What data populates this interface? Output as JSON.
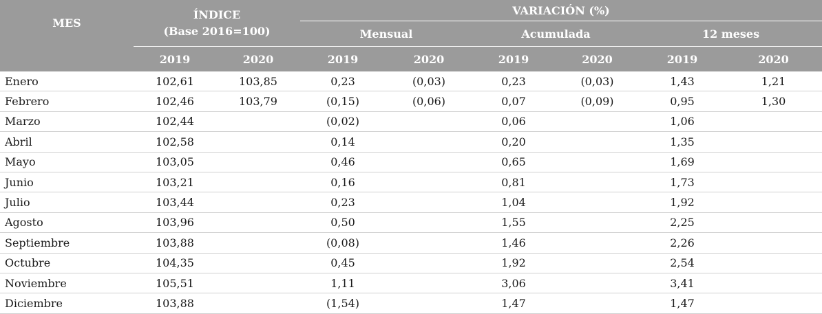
{
  "header": {
    "mes": "MES",
    "indice_line1": "ÍNDICE",
    "indice_line2": "(Base 2016=100)",
    "variacion": "VARIACIÓN (%)",
    "mensual": "Mensual",
    "acumulada": "Acumulada",
    "doce_meses": "12 meses",
    "years": [
      "2019",
      "2020",
      "2019",
      "2020",
      "2019",
      "2020",
      "2019",
      "2020"
    ]
  },
  "rows": [
    {
      "mes": "Enero",
      "v": [
        "102,61",
        "103,85",
        "0,23",
        "(0,03)",
        "0,23",
        "(0,03)",
        "1,43",
        "1,21"
      ]
    },
    {
      "mes": "Febrero",
      "v": [
        "102,46",
        "103,79",
        "(0,15)",
        "(0,06)",
        "0,07",
        "(0,09)",
        "0,95",
        "1,30"
      ]
    },
    {
      "mes": "Marzo",
      "v": [
        "102,44",
        "",
        "(0,02)",
        "",
        "0,06",
        "",
        "1,06",
        ""
      ]
    },
    {
      "mes": "Abril",
      "v": [
        "102,58",
        "",
        "0,14",
        "",
        "0,20",
        "",
        "1,35",
        ""
      ]
    },
    {
      "mes": "Mayo",
      "v": [
        "103,05",
        "",
        "0,46",
        "",
        "0,65",
        "",
        "1,69",
        ""
      ]
    },
    {
      "mes": "Junio",
      "v": [
        "103,21",
        "",
        "0,16",
        "",
        "0,81",
        "",
        "1,73",
        ""
      ]
    },
    {
      "mes": "Julio",
      "v": [
        "103,44",
        "",
        "0,23",
        "",
        "1,04",
        "",
        "1,92",
        ""
      ]
    },
    {
      "mes": "Agosto",
      "v": [
        "103,96",
        "",
        "0,50",
        "",
        "1,55",
        "",
        "2,25",
        ""
      ]
    },
    {
      "mes": "Septiembre",
      "v": [
        "103,88",
        "",
        "(0,08)",
        "",
        "1,46",
        "",
        "2,26",
        ""
      ]
    },
    {
      "mes": "Octubre",
      "v": [
        "104,35",
        "",
        "0,45",
        "",
        "1,92",
        "",
        "2,54",
        ""
      ]
    },
    {
      "mes": "Noviembre",
      "v": [
        "105,51",
        "",
        "1,11",
        "",
        "3,06",
        "",
        "3,41",
        ""
      ]
    },
    {
      "mes": "Diciembre",
      "v": [
        "103,88",
        "",
        "(1,54)",
        "",
        "1,47",
        "",
        "1,47",
        ""
      ]
    }
  ]
}
